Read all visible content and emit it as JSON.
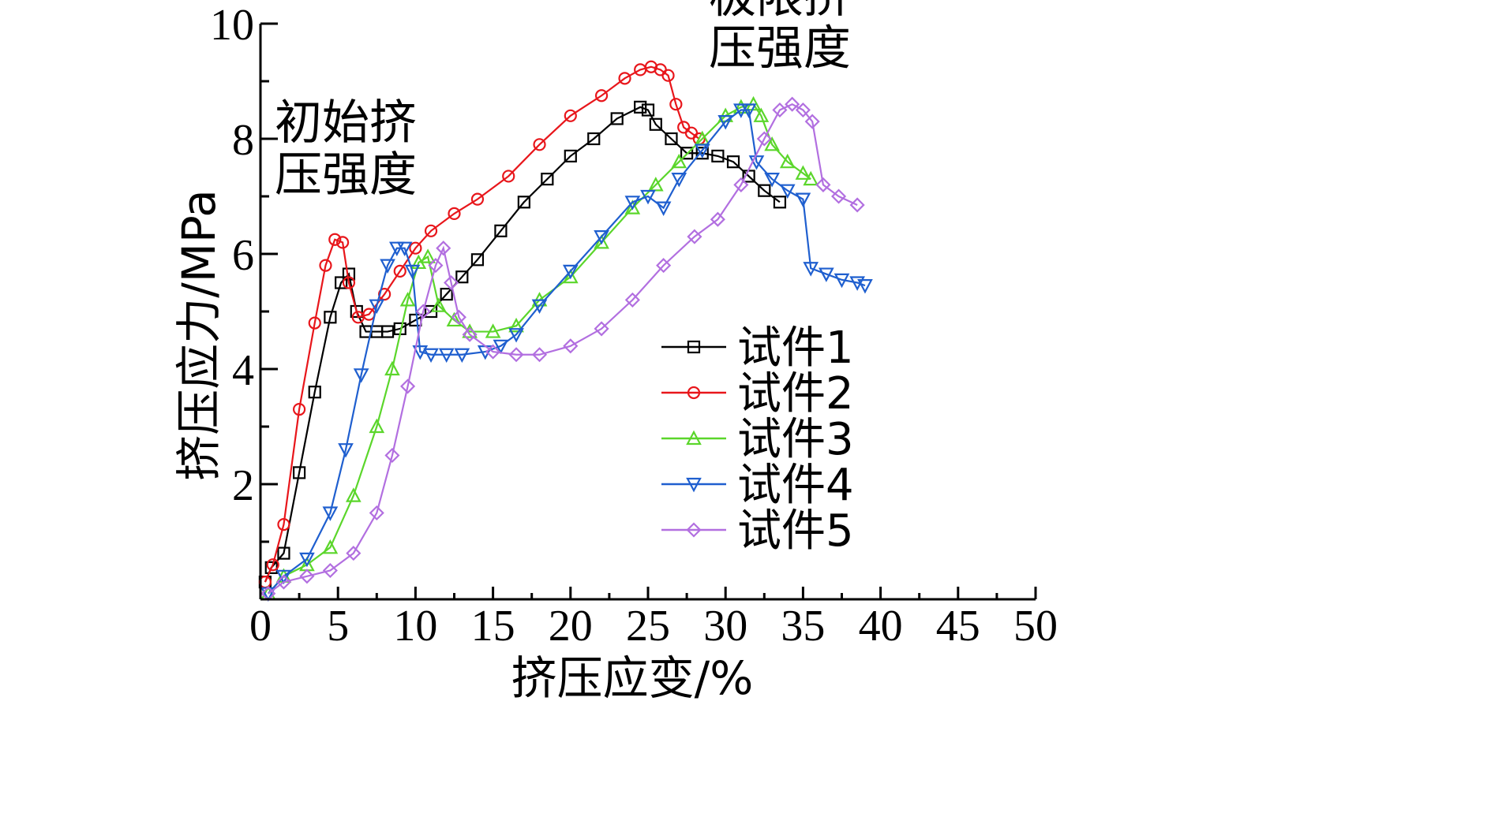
{
  "chart_data": {
    "type": "line",
    "title": "",
    "xlabel": "挤压应变/%",
    "ylabel": "挤压应力/MPa",
    "xlim": [
      0,
      50
    ],
    "ylim": [
      0,
      10
    ],
    "x_ticks": [
      0,
      5,
      10,
      15,
      20,
      25,
      30,
      35,
      40,
      45,
      50
    ],
    "x_tick_labels": [
      "0",
      "5",
      "10",
      "15",
      "20",
      "25",
      "30",
      "35",
      "40",
      "45",
      "50"
    ],
    "y_ticks": [
      2,
      4,
      6,
      8,
      10
    ],
    "y_tick_labels": [
      "2",
      "4",
      "6",
      "8",
      "10"
    ],
    "grid": false,
    "legend_position": "right-center",
    "annotations": [
      {
        "lines": [
          "初始挤",
          "压强度"
        ],
        "x": 5.5,
        "y": 8.0
      },
      {
        "lines": [
          "极限挤",
          "压强度"
        ],
        "x": 33.5,
        "y": 10.2
      }
    ],
    "series": [
      {
        "name": "试件1",
        "color": "#000000",
        "marker": "square",
        "x": [
          0.3,
          0.7,
          1.5,
          2.5,
          3.5,
          4.5,
          5.2,
          5.7,
          6.2,
          6.8,
          7.5,
          8.2,
          9.0,
          10.0,
          11.0,
          12.0,
          13.0,
          14.0,
          15.5,
          17.0,
          18.5,
          20.0,
          21.5,
          23.0,
          24.5,
          25.0,
          25.5,
          26.5,
          27.5,
          28.5,
          29.5,
          30.5,
          31.5,
          32.5,
          33.5
        ],
        "y": [
          0.3,
          0.55,
          0.8,
          2.2,
          3.6,
          4.9,
          5.5,
          5.65,
          5.0,
          4.65,
          4.65,
          4.65,
          4.7,
          4.85,
          5.0,
          5.3,
          5.6,
          5.9,
          6.4,
          6.9,
          7.3,
          7.7,
          8.0,
          8.35,
          8.55,
          8.5,
          8.25,
          8.0,
          7.75,
          7.75,
          7.7,
          7.6,
          7.35,
          7.1,
          6.9
        ]
      },
      {
        "name": "试件2",
        "color": "#e8161b",
        "marker": "circle",
        "x": [
          0.3,
          0.8,
          1.5,
          2.5,
          3.5,
          4.2,
          4.8,
          5.3,
          5.7,
          6.3,
          7.0,
          8.0,
          9.0,
          10.0,
          11.0,
          12.5,
          14.0,
          16.0,
          18.0,
          20.0,
          22.0,
          23.5,
          24.5,
          25.2,
          25.8,
          26.3,
          26.8,
          27.3,
          27.8,
          28.3
        ],
        "y": [
          0.3,
          0.6,
          1.3,
          3.3,
          4.8,
          5.8,
          6.25,
          6.2,
          5.5,
          4.9,
          4.95,
          5.3,
          5.7,
          6.1,
          6.4,
          6.7,
          6.95,
          7.35,
          7.9,
          8.4,
          8.75,
          9.05,
          9.2,
          9.25,
          9.2,
          9.1,
          8.6,
          8.2,
          8.1,
          8.0
        ]
      },
      {
        "name": "试件3",
        "color": "#5bd62b",
        "marker": "triangle-up",
        "x": [
          0.5,
          1.5,
          3.0,
          4.5,
          6.0,
          7.5,
          8.5,
          9.5,
          10.2,
          10.8,
          11.5,
          12.5,
          13.5,
          15.0,
          16.5,
          18.0,
          20.0,
          22.0,
          24.0,
          25.5,
          27.0,
          28.5,
          30.0,
          31.0,
          31.8,
          32.3,
          33.0,
          34.0,
          35.0,
          35.5
        ],
        "y": [
          0.1,
          0.4,
          0.6,
          0.9,
          1.8,
          3.0,
          4.0,
          5.2,
          5.85,
          5.95,
          5.1,
          4.85,
          4.65,
          4.65,
          4.75,
          5.2,
          5.6,
          6.2,
          6.8,
          7.2,
          7.6,
          8.0,
          8.4,
          8.55,
          8.6,
          8.4,
          7.9,
          7.6,
          7.4,
          7.3
        ]
      },
      {
        "name": "试件4",
        "color": "#1f5fcf",
        "marker": "triangle-down",
        "x": [
          0.5,
          1.5,
          3.0,
          4.5,
          5.5,
          6.5,
          7.5,
          8.2,
          8.8,
          9.3,
          9.8,
          10.3,
          11.0,
          12.0,
          13.0,
          14.5,
          15.5,
          16.5,
          18.0,
          20.0,
          22.0,
          24.0,
          25.0,
          26.0,
          27.0,
          28.5,
          30.0,
          31.0,
          31.5,
          32.0,
          33.0,
          34.0,
          35.0,
          35.5,
          36.5,
          37.5,
          38.5,
          39.0
        ],
        "y": [
          0.1,
          0.4,
          0.7,
          1.5,
          2.6,
          3.9,
          5.1,
          5.8,
          6.1,
          6.1,
          5.7,
          4.3,
          4.25,
          4.25,
          4.25,
          4.3,
          4.4,
          4.6,
          5.1,
          5.7,
          6.3,
          6.9,
          7.0,
          6.8,
          7.3,
          7.8,
          8.3,
          8.5,
          8.5,
          7.6,
          7.3,
          7.1,
          6.95,
          5.75,
          5.65,
          5.55,
          5.5,
          5.45
        ]
      },
      {
        "name": "试件5",
        "color": "#b26fe0",
        "marker": "diamond",
        "x": [
          0.5,
          1.5,
          3.0,
          4.5,
          6.0,
          7.5,
          8.5,
          9.5,
          10.5,
          11.3,
          11.8,
          12.3,
          12.8,
          13.5,
          15.0,
          16.5,
          18.0,
          20.0,
          22.0,
          24.0,
          26.0,
          28.0,
          29.5,
          31.0,
          32.5,
          33.5,
          34.3,
          35.0,
          35.6,
          36.3,
          37.3,
          38.5
        ],
        "y": [
          0.1,
          0.3,
          0.4,
          0.5,
          0.8,
          1.5,
          2.5,
          3.7,
          5.0,
          5.8,
          6.1,
          5.5,
          4.9,
          4.6,
          4.3,
          4.25,
          4.25,
          4.4,
          4.7,
          5.2,
          5.8,
          6.3,
          6.6,
          7.2,
          8.0,
          8.5,
          8.6,
          8.5,
          8.3,
          7.2,
          7.0,
          6.85
        ]
      }
    ]
  }
}
